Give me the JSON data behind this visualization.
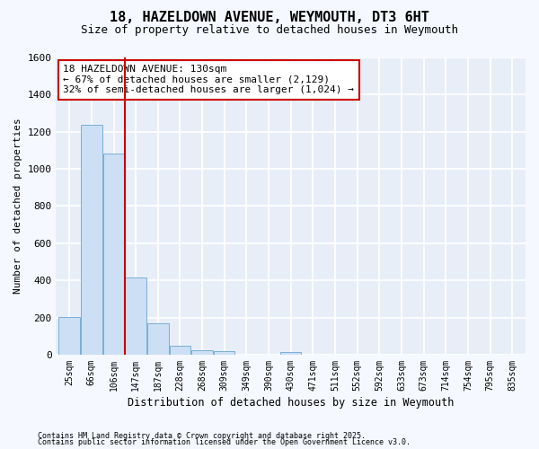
{
  "title1": "18, HAZELDOWN AVENUE, WEYMOUTH, DT3 6HT",
  "title2": "Size of property relative to detached houses in Weymouth",
  "xlabel": "Distribution of detached houses by size in Weymouth",
  "ylabel": "Number of detached properties",
  "categories": [
    "25sqm",
    "66sqm",
    "106sqm",
    "147sqm",
    "187sqm",
    "228sqm",
    "268sqm",
    "309sqm",
    "349sqm",
    "390sqm",
    "430sqm",
    "471sqm",
    "511sqm",
    "552sqm",
    "592sqm",
    "633sqm",
    "673sqm",
    "714sqm",
    "754sqm",
    "795sqm",
    "835sqm"
  ],
  "values": [
    205,
    1235,
    1085,
    415,
    170,
    50,
    25,
    20,
    0,
    0,
    15,
    0,
    0,
    0,
    0,
    0,
    0,
    0,
    0,
    0,
    0
  ],
  "bar_color": "#ccdff5",
  "bar_edge_color": "#7aafd4",
  "vline_x": 2.5,
  "vline_color": "#cc0000",
  "ylim": [
    0,
    1600
  ],
  "yticks": [
    0,
    200,
    400,
    600,
    800,
    1000,
    1200,
    1400,
    1600
  ],
  "annotation_text": "18 HAZELDOWN AVENUE: 130sqm\n← 67% of detached houses are smaller (2,129)\n32% of semi-detached houses are larger (1,024) →",
  "annotation_box_facecolor": "#ffffff",
  "annotation_box_edgecolor": "#cc0000",
  "fig_facecolor": "#f5f8ff",
  "ax_facecolor": "#e8eef8",
  "grid_color": "#ffffff",
  "footnote1": "Contains HM Land Registry data © Crown copyright and database right 2025.",
  "footnote2": "Contains public sector information licensed under the Open Government Licence v3.0.",
  "title1_fontsize": 11,
  "title2_fontsize": 9
}
